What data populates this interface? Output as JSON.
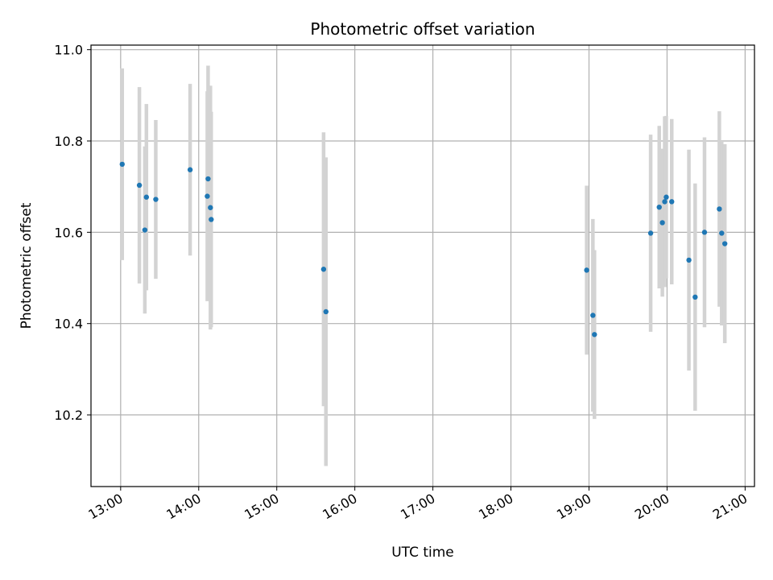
{
  "chart_data": {
    "type": "scatter",
    "title": "Photometric offset variation",
    "xlabel": "UTC time",
    "ylabel": "Photometric offset",
    "x_unit": "hours",
    "xlim": [
      12.62,
      21.12
    ],
    "ylim": [
      10.043,
      11.01
    ],
    "x_ticks": [
      {
        "value": 13,
        "label": "13:00"
      },
      {
        "value": 14,
        "label": "14:00"
      },
      {
        "value": 15,
        "label": "15:00"
      },
      {
        "value": 16,
        "label": "16:00"
      },
      {
        "value": 17,
        "label": "17:00"
      },
      {
        "value": 18,
        "label": "18:00"
      },
      {
        "value": 19,
        "label": "19:00"
      },
      {
        "value": 20,
        "label": "20:00"
      },
      {
        "value": 21,
        "label": "21:00"
      }
    ],
    "y_ticks": [
      {
        "value": 10.2,
        "label": "10.2"
      },
      {
        "value": 10.4,
        "label": "10.4"
      },
      {
        "value": 10.6,
        "label": "10.6"
      },
      {
        "value": 10.8,
        "label": "10.8"
      },
      {
        "value": 11.0,
        "label": "11.0"
      }
    ],
    "grid": true,
    "point_color": "#1f77b4",
    "error_color": "#d3d3d3",
    "points": [
      {
        "x": 13.02,
        "y": 10.749,
        "err": 0.21
      },
      {
        "x": 13.24,
        "y": 10.703,
        "err": 0.215
      },
      {
        "x": 13.31,
        "y": 10.605,
        "err": 0.183
      },
      {
        "x": 13.33,
        "y": 10.677,
        "err": 0.204
      },
      {
        "x": 13.45,
        "y": 10.672,
        "err": 0.174
      },
      {
        "x": 13.89,
        "y": 10.737,
        "err": 0.188
      },
      {
        "x": 14.11,
        "y": 10.679,
        "err": 0.23
      },
      {
        "x": 14.12,
        "y": 10.717,
        "err": 0.248
      },
      {
        "x": 14.15,
        "y": 10.654,
        "err": 0.267
      },
      {
        "x": 14.16,
        "y": 10.628,
        "err": 0.236
      },
      {
        "x": 15.6,
        "y": 10.519,
        "err": 0.3
      },
      {
        "x": 15.63,
        "y": 10.426,
        "err": 0.338
      },
      {
        "x": 18.97,
        "y": 10.517,
        "err": 0.185
      },
      {
        "x": 19.05,
        "y": 10.418,
        "err": 0.211
      },
      {
        "x": 19.07,
        "y": 10.376,
        "err": 0.185
      },
      {
        "x": 19.79,
        "y": 10.598,
        "err": 0.216
      },
      {
        "x": 19.9,
        "y": 10.655,
        "err": 0.178
      },
      {
        "x": 19.94,
        "y": 10.621,
        "err": 0.162
      },
      {
        "x": 19.97,
        "y": 10.667,
        "err": 0.187
      },
      {
        "x": 19.99,
        "y": 10.677,
        "err": 0.178
      },
      {
        "x": 20.06,
        "y": 10.667,
        "err": 0.181
      },
      {
        "x": 20.28,
        "y": 10.539,
        "err": 0.242
      },
      {
        "x": 20.36,
        "y": 10.458,
        "err": 0.249
      },
      {
        "x": 20.48,
        "y": 10.6,
        "err": 0.208
      },
      {
        "x": 20.67,
        "y": 10.651,
        "err": 0.214
      },
      {
        "x": 20.7,
        "y": 10.598,
        "err": 0.202
      },
      {
        "x": 20.74,
        "y": 10.575,
        "err": 0.218
      }
    ]
  }
}
